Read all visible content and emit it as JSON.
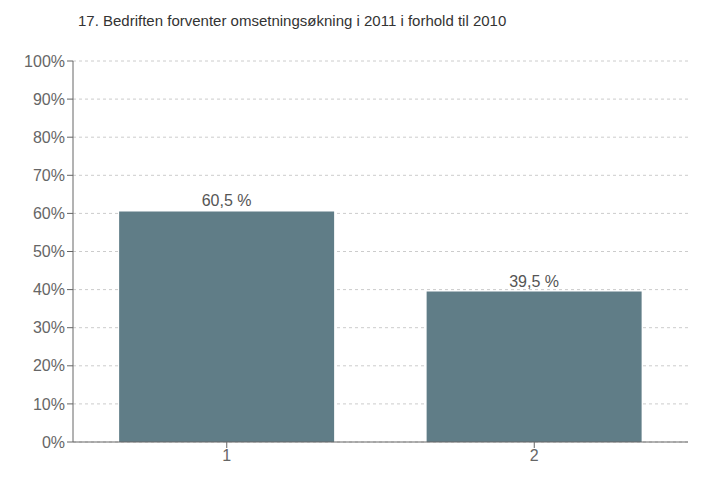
{
  "chart_data": {
    "type": "bar",
    "title": "17. Bedriften forventer omsetningsøkning i 2011 i forhold til 2010",
    "categories": [
      "1",
      "2"
    ],
    "values": [
      60.5,
      39.5
    ],
    "value_labels": [
      "60,5 %",
      "39,5 %"
    ],
    "data_labels": true,
    "color": "#607d87",
    "ylim": [
      0,
      100
    ],
    "yticks": [
      {
        "value": 0,
        "label": "0%"
      },
      {
        "value": 10,
        "label": "10%"
      },
      {
        "value": 20,
        "label": "20%"
      },
      {
        "value": 30,
        "label": "30%"
      },
      {
        "value": 40,
        "label": "40%"
      },
      {
        "value": 50,
        "label": "50%"
      },
      {
        "value": 60,
        "label": "60%"
      },
      {
        "value": 70,
        "label": "70%"
      },
      {
        "value": 80,
        "label": "80%"
      },
      {
        "value": 90,
        "label": "90%"
      },
      {
        "value": 100,
        "label": "100%"
      }
    ],
    "grid": true
  }
}
